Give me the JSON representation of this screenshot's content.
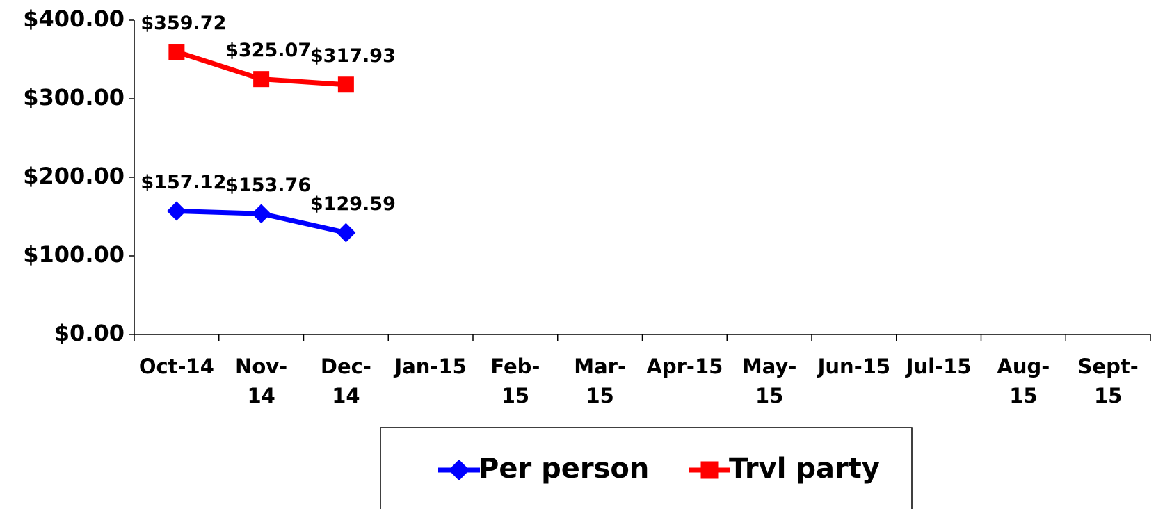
{
  "chart_data": {
    "type": "line",
    "categories": [
      "Oct-14",
      "Nov-14",
      "Dec-14",
      "Jan-15",
      "Feb-15",
      "Mar-15",
      "Apr-15",
      "May-15",
      "Jun-15",
      "Jul-15",
      "Aug-15",
      "Sept-15"
    ],
    "series": [
      {
        "name": "Per person",
        "color": "#0000ff",
        "marker": "diamond",
        "values": [
          157.12,
          153.76,
          129.59,
          null,
          null,
          null,
          null,
          null,
          null,
          null,
          null,
          null
        ],
        "value_labels": [
          "$157.12",
          "$153.76",
          "$129.59",
          null,
          null,
          null,
          null,
          null,
          null,
          null,
          null,
          null
        ]
      },
      {
        "name": "Trvl party",
        "color": "#ff0000",
        "marker": "square",
        "values": [
          359.72,
          325.07,
          317.93,
          null,
          null,
          null,
          null,
          null,
          null,
          null,
          null,
          null
        ],
        "value_labels": [
          "$359.72",
          "$325.07",
          "$317.93",
          null,
          null,
          null,
          null,
          null,
          null,
          null,
          null,
          null
        ]
      }
    ],
    "ylim": [
      0,
      400
    ],
    "yticks": [
      {
        "value": 0,
        "label": "$0.00"
      },
      {
        "value": 100,
        "label": "$100.00"
      },
      {
        "value": 200,
        "label": "$200.00"
      },
      {
        "value": 300,
        "label": "$300.00"
      },
      {
        "value": 400,
        "label": "$400.00"
      }
    ],
    "grid": false,
    "legend": "bottom"
  }
}
